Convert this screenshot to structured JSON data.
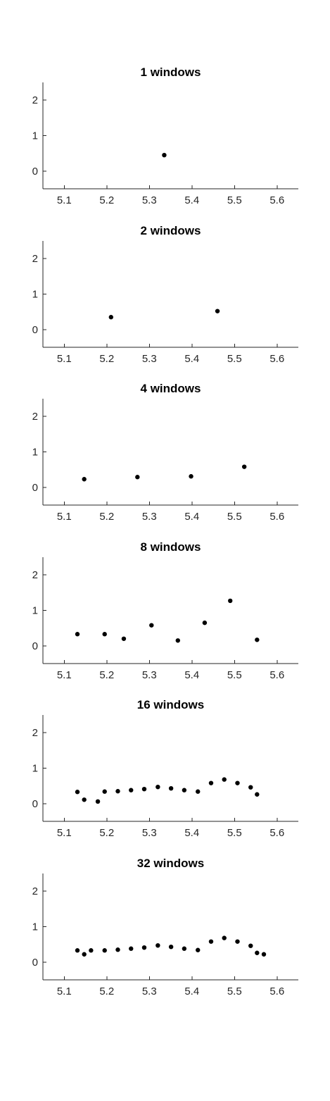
{
  "chart_data": [
    {
      "type": "scatter",
      "title": "1 windows",
      "xlim": [
        5.05,
        5.65
      ],
      "ylim": [
        -0.5,
        2.5
      ],
      "xticks": [
        "5.1",
        "5.2",
        "5.3",
        "5.4",
        "5.5",
        "5.6"
      ],
      "yticks": [
        "0",
        "1",
        "2"
      ],
      "x": [
        5.335
      ],
      "y": [
        0.45
      ]
    },
    {
      "type": "scatter",
      "title": "2 windows",
      "xlim": [
        5.05,
        5.65
      ],
      "ylim": [
        -0.5,
        2.5
      ],
      "xticks": [
        "5.1",
        "5.2",
        "5.3",
        "5.4",
        "5.5",
        "5.6"
      ],
      "yticks": [
        "0",
        "1",
        "2"
      ],
      "x": [
        5.21,
        5.46
      ],
      "y": [
        0.35,
        0.52
      ]
    },
    {
      "type": "scatter",
      "title": "4 windows",
      "xlim": [
        5.05,
        5.65
      ],
      "ylim": [
        -0.5,
        2.5
      ],
      "xticks": [
        "5.1",
        "5.2",
        "5.3",
        "5.4",
        "5.5",
        "5.6"
      ],
      "yticks": [
        "0",
        "1",
        "2"
      ],
      "x": [
        5.147,
        5.272,
        5.398,
        5.523
      ],
      "y": [
        0.23,
        0.29,
        0.31,
        0.58
      ]
    },
    {
      "type": "scatter",
      "title": "8 windows",
      "xlim": [
        5.05,
        5.65
      ],
      "ylim": [
        -0.5,
        2.5
      ],
      "xticks": [
        "5.1",
        "5.2",
        "5.3",
        "5.4",
        "5.5",
        "5.6"
      ],
      "yticks": [
        "0",
        "1",
        "2"
      ],
      "x": [
        5.131,
        5.195,
        5.24,
        5.305,
        5.367,
        5.43,
        5.49,
        5.553
      ],
      "y": [
        0.33,
        0.33,
        0.2,
        0.58,
        0.15,
        0.65,
        1.27,
        0.17
      ]
    },
    {
      "type": "scatter",
      "title": "16 windows",
      "xlim": [
        5.05,
        5.65
      ],
      "ylim": [
        -0.5,
        2.5
      ],
      "xticks": [
        "5.1",
        "5.2",
        "5.3",
        "5.4",
        "5.5",
        "5.6"
      ],
      "yticks": [
        "0",
        "1",
        "2"
      ],
      "x": [
        5.131,
        5.147,
        5.179,
        5.195,
        5.226,
        5.257,
        5.288,
        5.32,
        5.351,
        5.382,
        5.414,
        5.445,
        5.476,
        5.507,
        5.538,
        5.553
      ],
      "y": [
        0.33,
        0.11,
        0.06,
        0.34,
        0.35,
        0.38,
        0.41,
        0.47,
        0.43,
        0.38,
        0.34,
        0.58,
        0.68,
        0.58,
        0.46,
        0.26
      ]
    },
    {
      "type": "scatter",
      "title": "32 windows",
      "xlim": [
        5.05,
        5.65
      ],
      "ylim": [
        -0.5,
        2.5
      ],
      "xticks": [
        "5.1",
        "5.2",
        "5.3",
        "5.4",
        "5.5",
        "5.6"
      ],
      "yticks": [
        "0",
        "1",
        "2"
      ],
      "x": [
        5.131,
        5.147,
        5.163,
        5.195,
        5.226,
        5.257,
        5.288,
        5.32,
        5.351,
        5.382,
        5.414,
        5.445,
        5.476,
        5.507,
        5.538,
        5.553,
        5.569
      ],
      "y": [
        0.33,
        0.22,
        0.33,
        0.33,
        0.35,
        0.38,
        0.41,
        0.47,
        0.43,
        0.38,
        0.34,
        0.58,
        0.68,
        0.58,
        0.46,
        0.26,
        0.22
      ]
    }
  ]
}
